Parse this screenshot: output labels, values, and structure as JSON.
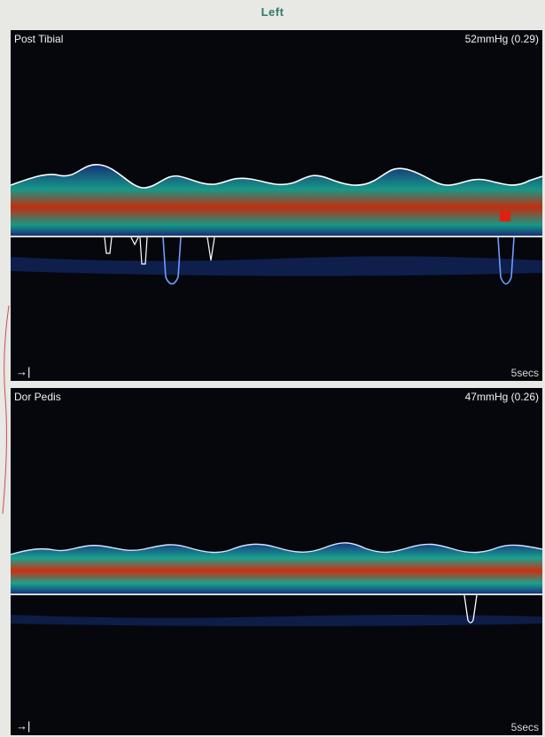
{
  "header": {
    "title": "Left"
  },
  "panels": [
    {
      "vessel": "Post Tibial",
      "pressure": "52mmHg (0.29)",
      "sweep_label": "5secs",
      "colors": {
        "envelope": "#ffffff",
        "spectrum_high": "#ff3a10",
        "spectrum_mid": "#1ec8b0",
        "spectrum_low": "#1a3f9a",
        "lower_envelope": "#6f9dff"
      }
    },
    {
      "vessel": "Dor Pedis",
      "pressure": "47mmHg (0.26)",
      "sweep_label": "5secs",
      "colors": {
        "envelope": "#ffffff",
        "spectrum_high": "#ff3a10",
        "spectrum_mid": "#1ec8b0",
        "spectrum_low": "#1a3f9a",
        "lower_envelope": "#6f9dff"
      }
    }
  ],
  "icons": {
    "sweep_arrow": "→|"
  }
}
